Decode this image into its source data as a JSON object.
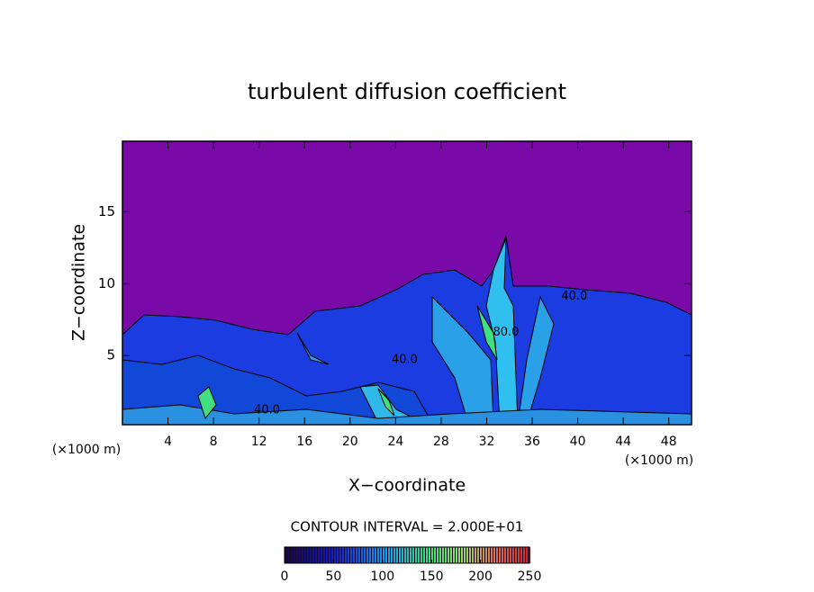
{
  "chart_data": {
    "type": "contour",
    "title": "turbulent diffusion coefficient",
    "xlabel": "X−coordinate",
    "ylabel": "Z−coordinate",
    "x_unit": "(×1000 m)",
    "contour_interval": "CONTOUR INTERVAL = 2.000E+01",
    "xlim": [
      0,
      50
    ],
    "ylim": [
      0.2,
      19.9
    ],
    "xticks": [
      4,
      8,
      12,
      16,
      20,
      24,
      28,
      32,
      36,
      40,
      44,
      48
    ],
    "yticks": [
      5,
      10,
      15
    ],
    "colorbar": {
      "lim": [
        0,
        250
      ],
      "ticks": [
        0,
        50,
        100,
        150,
        200,
        250
      ]
    },
    "contour_labels": [
      {
        "x": 12.7,
        "z": 1.2,
        "value": 40,
        "label": "40.0"
      },
      {
        "x": 24.8,
        "z": 4.7,
        "value": 40,
        "label": "40.0"
      },
      {
        "x": 39.7,
        "z": 9.1,
        "value": 40,
        "label": "40.0"
      },
      {
        "x": 33.7,
        "z": 6.6,
        "value": 80,
        "label": "80.0"
      }
    ]
  }
}
